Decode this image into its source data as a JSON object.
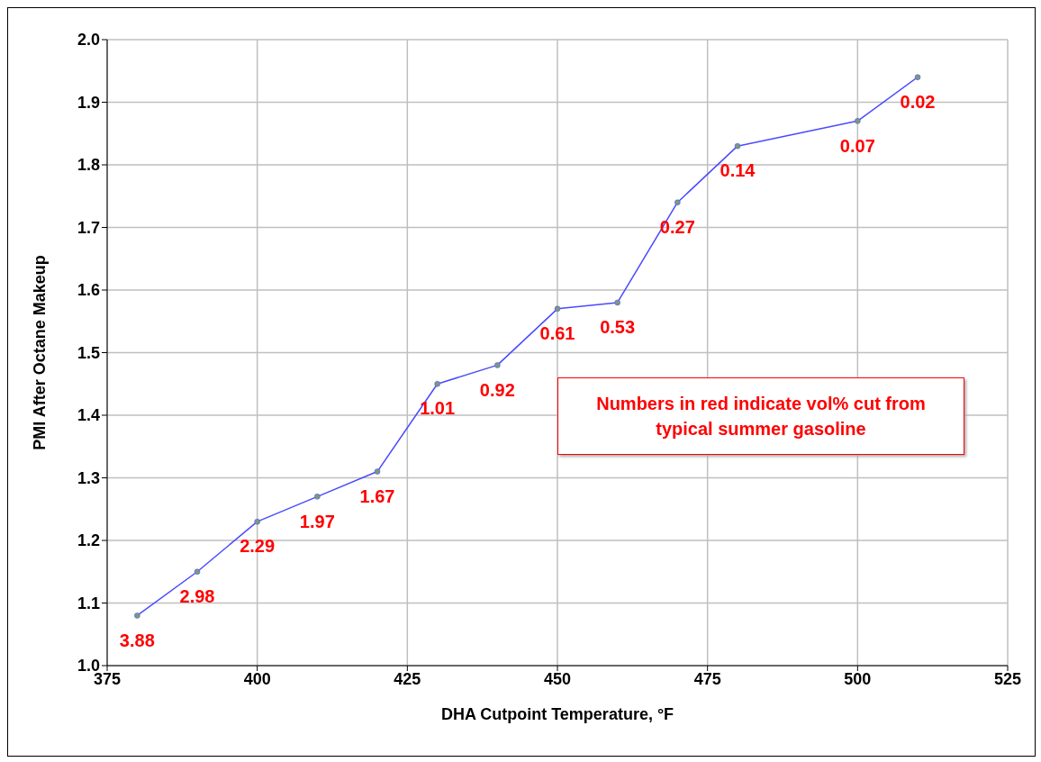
{
  "chart_data": {
    "type": "line",
    "xlabel": "DHA Cutpoint Temperature, °F",
    "ylabel": "PMI After Octane Makeup",
    "x": [
      380,
      390,
      400,
      410,
      420,
      430,
      440,
      450,
      460,
      470,
      480,
      500,
      510
    ],
    "series": [
      {
        "color": "#4a4aff",
        "values": [
          1.08,
          1.15,
          1.23,
          1.27,
          1.31,
          1.45,
          1.48,
          1.57,
          1.58,
          1.74,
          1.83,
          1.87,
          1.94
        ]
      }
    ],
    "xlim": [
      375,
      525
    ],
    "xticks": [
      375,
      400,
      425,
      450,
      475,
      500,
      525
    ],
    "ylim": [
      1.0,
      2.0
    ],
    "yticks": [
      {
        "value": 1.0,
        "label": "1.0"
      },
      {
        "value": 1.1,
        "label": "1.1"
      },
      {
        "value": 1.2,
        "label": "1.2"
      },
      {
        "value": 1.3,
        "label": "1.3"
      },
      {
        "value": 1.4,
        "label": "1.4"
      },
      {
        "value": 1.5,
        "label": "1.5"
      },
      {
        "value": 1.6,
        "label": "1.6"
      },
      {
        "value": 1.7,
        "label": "1.7"
      },
      {
        "value": 1.8,
        "label": "1.8"
      },
      {
        "value": 1.9,
        "label": "1.9"
      },
      {
        "value": 2.0,
        "label": "2.0"
      }
    ],
    "grid": true,
    "marker": "circle",
    "line_style": "solid",
    "annotations": [
      {
        "text": "3.88",
        "x": 380,
        "y": 1.08
      },
      {
        "text": "2.98",
        "x": 390,
        "y": 1.15
      },
      {
        "text": "2.29",
        "x": 400,
        "y": 1.23
      },
      {
        "text": "1.97",
        "x": 410,
        "y": 1.27
      },
      {
        "text": "1.67",
        "x": 420,
        "y": 1.31
      },
      {
        "text": "1.01",
        "x": 430,
        "y": 1.45
      },
      {
        "text": "0.92",
        "x": 440,
        "y": 1.48
      },
      {
        "text": "0.61",
        "x": 450,
        "y": 1.57
      },
      {
        "text": "0.53",
        "x": 460,
        "y": 1.58
      },
      {
        "text": "0.27",
        "x": 470,
        "y": 1.74
      },
      {
        "text": "0.14",
        "x": 480,
        "y": 1.83
      },
      {
        "text": "0.07",
        "x": 500,
        "y": 1.87
      },
      {
        "text": "0.02",
        "x": 510,
        "y": 1.94
      },
      "Numbers in red indicate vol% cut from typical summer gasoline"
    ]
  }
}
